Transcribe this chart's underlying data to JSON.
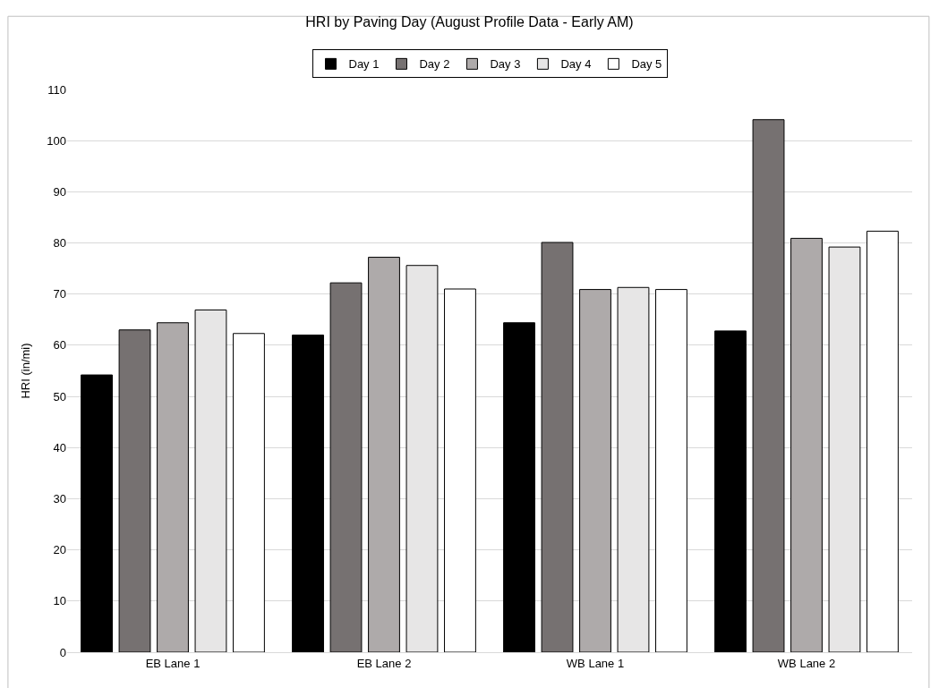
{
  "chart_data": {
    "type": "bar",
    "title": "HRI by Paving Day (August Profile Data - Early AM)",
    "ylabel": "HRI (in/mi)",
    "categories": [
      "EB Lane 1",
      "EB Lane 2",
      "WB Lane 1",
      "WB Lane 2"
    ],
    "series": [
      {
        "name": "Day 1",
        "color": "#000000",
        "values": [
          54.2,
          62.0,
          64.4,
          62.8
        ]
      },
      {
        "name": "Day 2",
        "color": "#767171",
        "values": [
          63.0,
          72.2,
          80.1,
          104.1
        ]
      },
      {
        "name": "Day 3",
        "color": "#aeaaaa",
        "values": [
          64.4,
          77.2,
          70.9,
          80.9
        ]
      },
      {
        "name": "Day 4",
        "color": "#e7e6e6",
        "values": [
          66.9,
          75.6,
          71.3,
          79.2
        ]
      },
      {
        "name": "Day 5",
        "color": "#ffffff",
        "values": [
          62.3,
          71.0,
          70.9,
          82.3
        ]
      }
    ],
    "ylim": [
      0,
      110
    ],
    "yticks": [
      0,
      10,
      20,
      30,
      40,
      50,
      60,
      70,
      80,
      90,
      100,
      110
    ],
    "grid": "y",
    "legend": "top"
  }
}
